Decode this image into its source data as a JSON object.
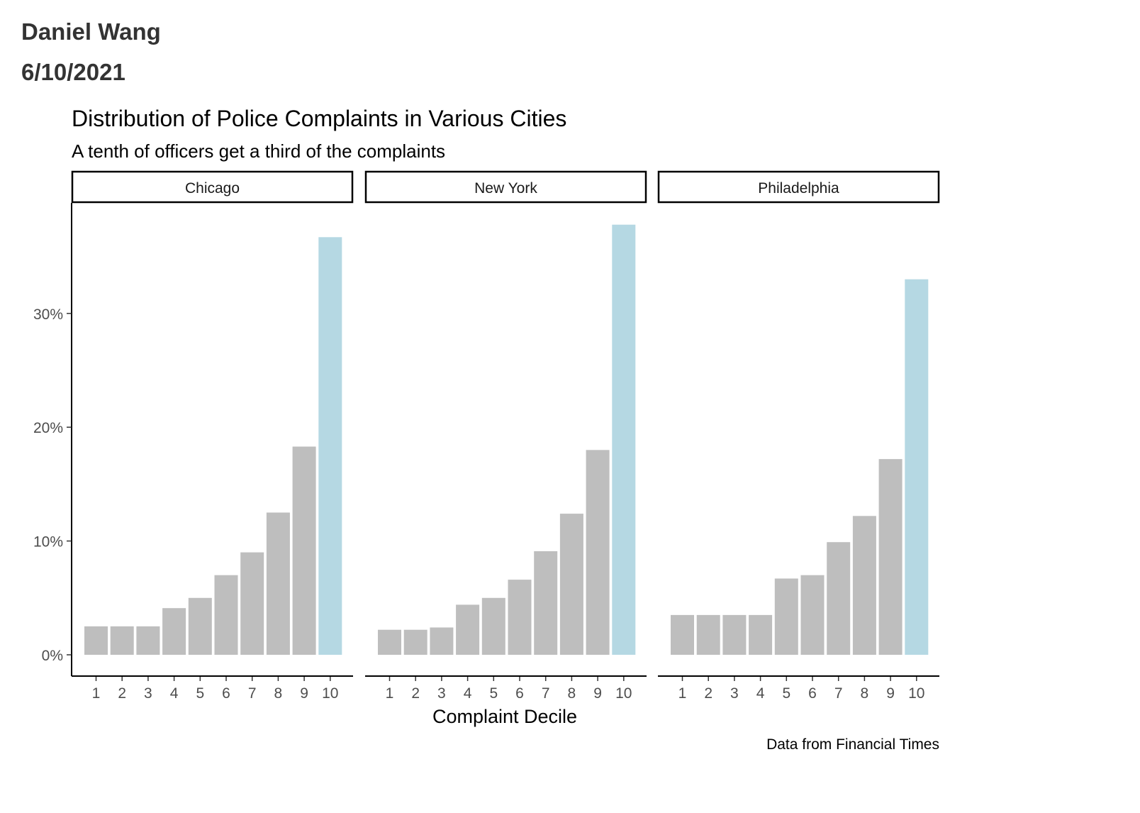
{
  "header": {
    "author": "Daniel Wang",
    "date": "6/10/2021"
  },
  "chart_data": {
    "type": "bar",
    "title": "Distribution of Police Complaints in Various Cities",
    "subtitle": "A tenth of officers get a third of the complaints",
    "xlabel": "Complaint Decile",
    "ylabel": "",
    "caption": "Data from Financial Times",
    "categories": [
      "1",
      "2",
      "3",
      "4",
      "5",
      "6",
      "7",
      "8",
      "9",
      "10"
    ],
    "ylim": [
      0,
      0.38
    ],
    "y_ticks": [
      0,
      0.1,
      0.2,
      0.3
    ],
    "y_tick_labels": [
      "0%",
      "10%",
      "20%",
      "30%"
    ],
    "grid": false,
    "colors": {
      "default_bar": "#bebebe",
      "highlight_bar": "#b5d8e3"
    },
    "highlight_category": "10",
    "panels": [
      {
        "name": "Chicago",
        "values": [
          0.025,
          0.025,
          0.025,
          0.041,
          0.05,
          0.07,
          0.09,
          0.125,
          0.183,
          0.367
        ]
      },
      {
        "name": "New York",
        "values": [
          0.022,
          0.022,
          0.024,
          0.044,
          0.05,
          0.066,
          0.091,
          0.124,
          0.18,
          0.378
        ]
      },
      {
        "name": "Philadelphia",
        "values": [
          0.035,
          0.035,
          0.035,
          0.035,
          0.067,
          0.07,
          0.099,
          0.122,
          0.172,
          0.33
        ]
      }
    ]
  }
}
